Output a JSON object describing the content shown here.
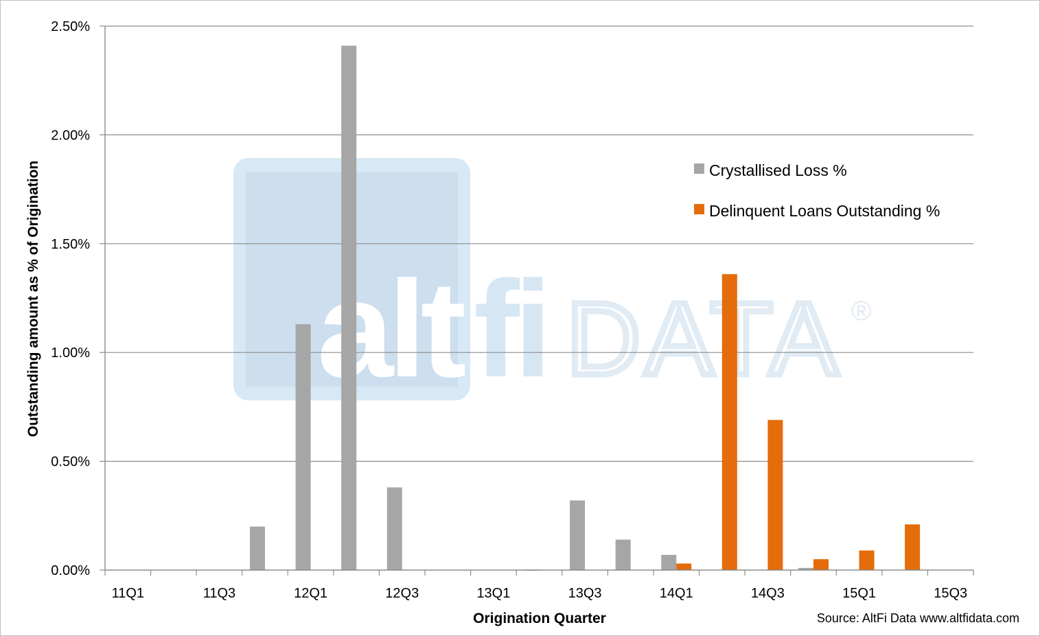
{
  "chart_data": {
    "type": "bar",
    "title": "",
    "xlabel": "Origination Quarter",
    "ylabel": "Outstanding amount as % of Origination",
    "ylim": [
      0,
      2.5
    ],
    "yticks": [
      "0.00%",
      "0.50%",
      "1.00%",
      "1.50%",
      "2.00%",
      "2.50%"
    ],
    "yticks_values": [
      0,
      0.5,
      1.0,
      1.5,
      2.0,
      2.5
    ],
    "categories": [
      "11Q1",
      "11Q2",
      "11Q3",
      "11Q4",
      "12Q1",
      "12Q2",
      "12Q3",
      "12Q4",
      "13Q1",
      "13Q2",
      "13Q3",
      "13Q4",
      "14Q1",
      "14Q2",
      "14Q3",
      "14Q4",
      "15Q1",
      "15Q2",
      "15Q3"
    ],
    "x_tick_labels": [
      "11Q1",
      "",
      "11Q3",
      "",
      "12Q1",
      "",
      "12Q3",
      "",
      "13Q1",
      "",
      "13Q3",
      "",
      "14Q1",
      "",
      "14Q3",
      "",
      "15Q1",
      "",
      "15Q3"
    ],
    "series": [
      {
        "name": "Crystallised Loss %",
        "color": "#a6a6a6",
        "values": [
          0,
          0,
          0,
          0.2,
          1.13,
          2.41,
          0.38,
          0,
          0,
          0.002,
          0.32,
          0.14,
          0.07,
          0,
          0,
          0.01,
          0,
          0,
          0
        ]
      },
      {
        "name": "Delinquent Loans Outstanding %",
        "color": "#e46c0a",
        "values": [
          0,
          0,
          0,
          0,
          0,
          0,
          0,
          0,
          0,
          0,
          0,
          0,
          0.03,
          1.36,
          0.69,
          0.05,
          0.09,
          0.21,
          0
        ]
      }
    ],
    "grid": true,
    "legend_position": "right"
  },
  "source_text": "Source: AltFi Data www.altfidata.com",
  "watermark": {
    "text_alt": "alt",
    "text_fi": "fi",
    "text_data": "DATA",
    "registered": "®"
  }
}
